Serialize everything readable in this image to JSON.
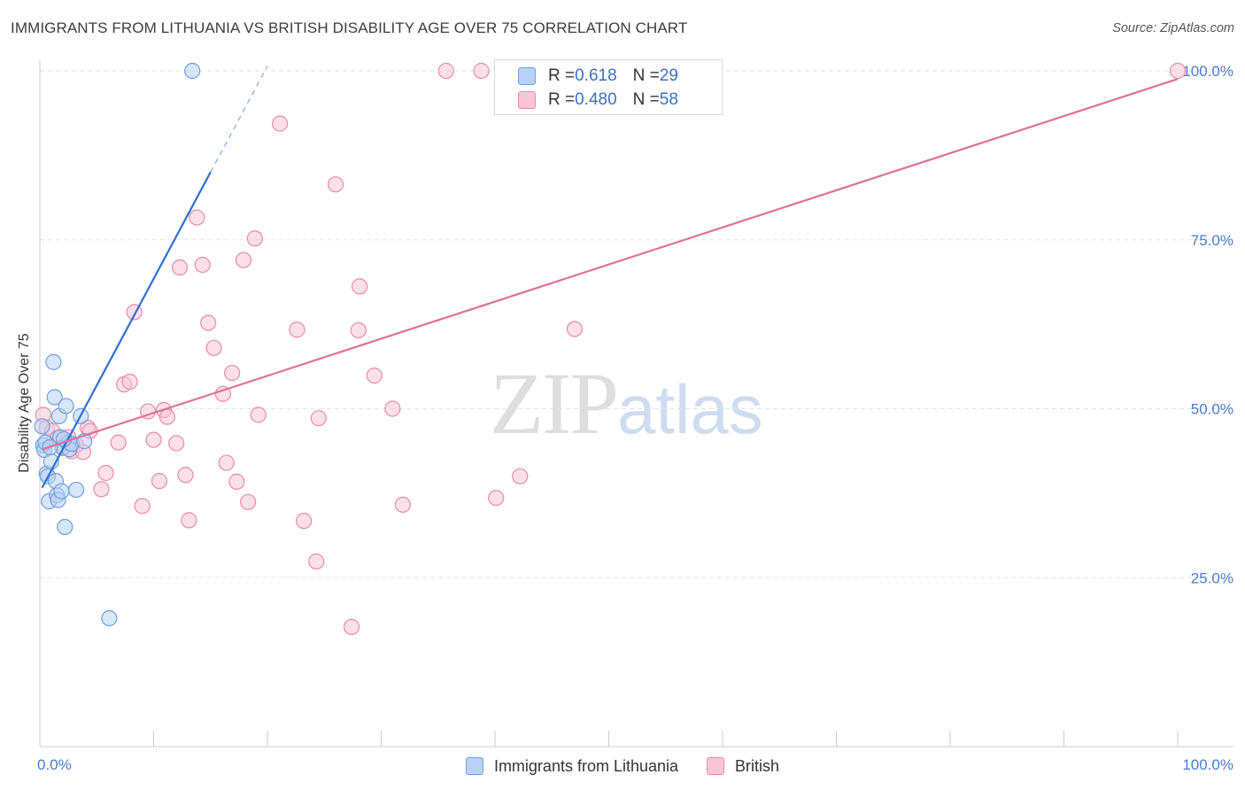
{
  "header": {
    "title": "IMMIGRANTS FROM LITHUANIA VS BRITISH DISABILITY AGE OVER 75 CORRELATION CHART",
    "source": "Source: ZipAtlas.com"
  },
  "watermark": {
    "zip": "ZIP",
    "atlas": "atlas"
  },
  "legend": {
    "rows": [
      {
        "r_label": "R = ",
        "r_value": "0.618",
        "n_label": "N = ",
        "n_value": "29"
      },
      {
        "r_label": "R = ",
        "r_value": "0.480",
        "n_label": "N = ",
        "n_value": "58"
      }
    ]
  },
  "colors": {
    "blue_fill": "#b8d2f5",
    "blue_stroke": "#6f9fdc",
    "blue_line": "#2d6fd0",
    "pink_fill": "#f8c6d6",
    "pink_stroke": "#e98aab",
    "pink_line": "#e0709a",
    "grid": "#e3e3e3",
    "axis_text": "#4a7cc9"
  },
  "chart_data": {
    "type": "scatter",
    "title": "IMMIGRANTS FROM LITHUANIA VS BRITISH DISABILITY AGE OVER 75 CORRELATION CHART",
    "xlabel": "",
    "ylabel": "Disability Age Over 75",
    "xlim": [
      0,
      100
    ],
    "ylim": [
      0,
      103
    ],
    "x_tick_labels": [
      "0.0%",
      "100.0%"
    ],
    "y_ticks": [
      25,
      50,
      75,
      100
    ],
    "y_tick_labels": [
      "25.0%",
      "50.0%",
      "75.0%",
      "100.0%"
    ],
    "grid": true,
    "legend_position": "bottom",
    "series": [
      {
        "name": "Immigrants from Lithuania",
        "r": 0.618,
        "n": 29,
        "points": [
          [
            0.2,
            47.4
          ],
          [
            0.3,
            44.6
          ],
          [
            0.4,
            43.9
          ],
          [
            0.5,
            45.0
          ],
          [
            0.6,
            40.4
          ],
          [
            0.7,
            40.0
          ],
          [
            0.8,
            36.3
          ],
          [
            1.0,
            42.2
          ],
          [
            1.2,
            56.9
          ],
          [
            1.3,
            51.7
          ],
          [
            1.4,
            39.3
          ],
          [
            1.5,
            37.2
          ],
          [
            1.6,
            36.5
          ],
          [
            1.7,
            48.9
          ],
          [
            1.8,
            45.8
          ],
          [
            1.9,
            37.8
          ],
          [
            2.0,
            44.2
          ],
          [
            2.2,
            32.5
          ],
          [
            2.3,
            50.4
          ],
          [
            2.5,
            44.9
          ],
          [
            2.6,
            44.0
          ],
          [
            2.8,
            44.8
          ],
          [
            3.2,
            38.0
          ],
          [
            3.6,
            48.9
          ],
          [
            3.9,
            45.2
          ],
          [
            6.1,
            19.0
          ],
          [
            13.4,
            100.0
          ],
          [
            2.1,
            45.5
          ],
          [
            0.9,
            44.3
          ]
        ],
        "trend": {
          "x0": 0.2,
          "y0": 38.3,
          "x1": 15.0,
          "y1": 85.0,
          "dash_x1": 20.0,
          "dash_y1": 100.7
        }
      },
      {
        "name": "British",
        "r": 0.48,
        "n": 58,
        "points": [
          [
            0.3,
            49.1
          ],
          [
            0.6,
            47.2
          ],
          [
            1.1,
            46.7
          ],
          [
            1.6,
            45.7
          ],
          [
            2.0,
            44.4
          ],
          [
            2.5,
            45.8
          ],
          [
            2.8,
            43.7
          ],
          [
            3.2,
            44.6
          ],
          [
            3.8,
            43.6
          ],
          [
            4.2,
            47.2
          ],
          [
            4.4,
            46.7
          ],
          [
            5.4,
            38.1
          ],
          [
            5.8,
            40.5
          ],
          [
            6.9,
            45.0
          ],
          [
            7.4,
            53.6
          ],
          [
            7.9,
            54.0
          ],
          [
            8.3,
            64.3
          ],
          [
            9.0,
            35.6
          ],
          [
            9.5,
            49.6
          ],
          [
            10.0,
            45.4
          ],
          [
            10.5,
            39.3
          ],
          [
            10.9,
            49.8
          ],
          [
            11.2,
            48.8
          ],
          [
            12.0,
            44.9
          ],
          [
            12.3,
            70.9
          ],
          [
            12.8,
            40.2
          ],
          [
            13.1,
            33.5
          ],
          [
            13.8,
            78.3
          ],
          [
            14.3,
            71.3
          ],
          [
            14.8,
            62.7
          ],
          [
            15.3,
            59.0
          ],
          [
            16.1,
            52.2
          ],
          [
            16.4,
            42.0
          ],
          [
            16.9,
            55.3
          ],
          [
            17.3,
            39.2
          ],
          [
            17.9,
            72.0
          ],
          [
            18.3,
            36.2
          ],
          [
            18.9,
            75.2
          ],
          [
            19.2,
            49.1
          ],
          [
            21.1,
            92.2
          ],
          [
            22.6,
            61.7
          ],
          [
            23.2,
            33.4
          ],
          [
            24.3,
            27.4
          ],
          [
            24.5,
            48.6
          ],
          [
            26.0,
            83.2
          ],
          [
            27.4,
            17.7
          ],
          [
            28.0,
            61.6
          ],
          [
            28.1,
            68.1
          ],
          [
            29.4,
            54.9
          ],
          [
            31.0,
            50.0
          ],
          [
            31.9,
            35.8
          ],
          [
            35.7,
            100.0
          ],
          [
            38.8,
            100.0
          ],
          [
            40.1,
            36.8
          ],
          [
            42.2,
            40.0
          ],
          [
            47.0,
            61.8
          ],
          [
            52.2,
            100.0
          ],
          [
            100.0,
            100.0
          ]
        ],
        "trend": {
          "x0": 0.2,
          "y0": 44.0,
          "x1": 100.0,
          "y1": 98.8
        }
      }
    ]
  }
}
